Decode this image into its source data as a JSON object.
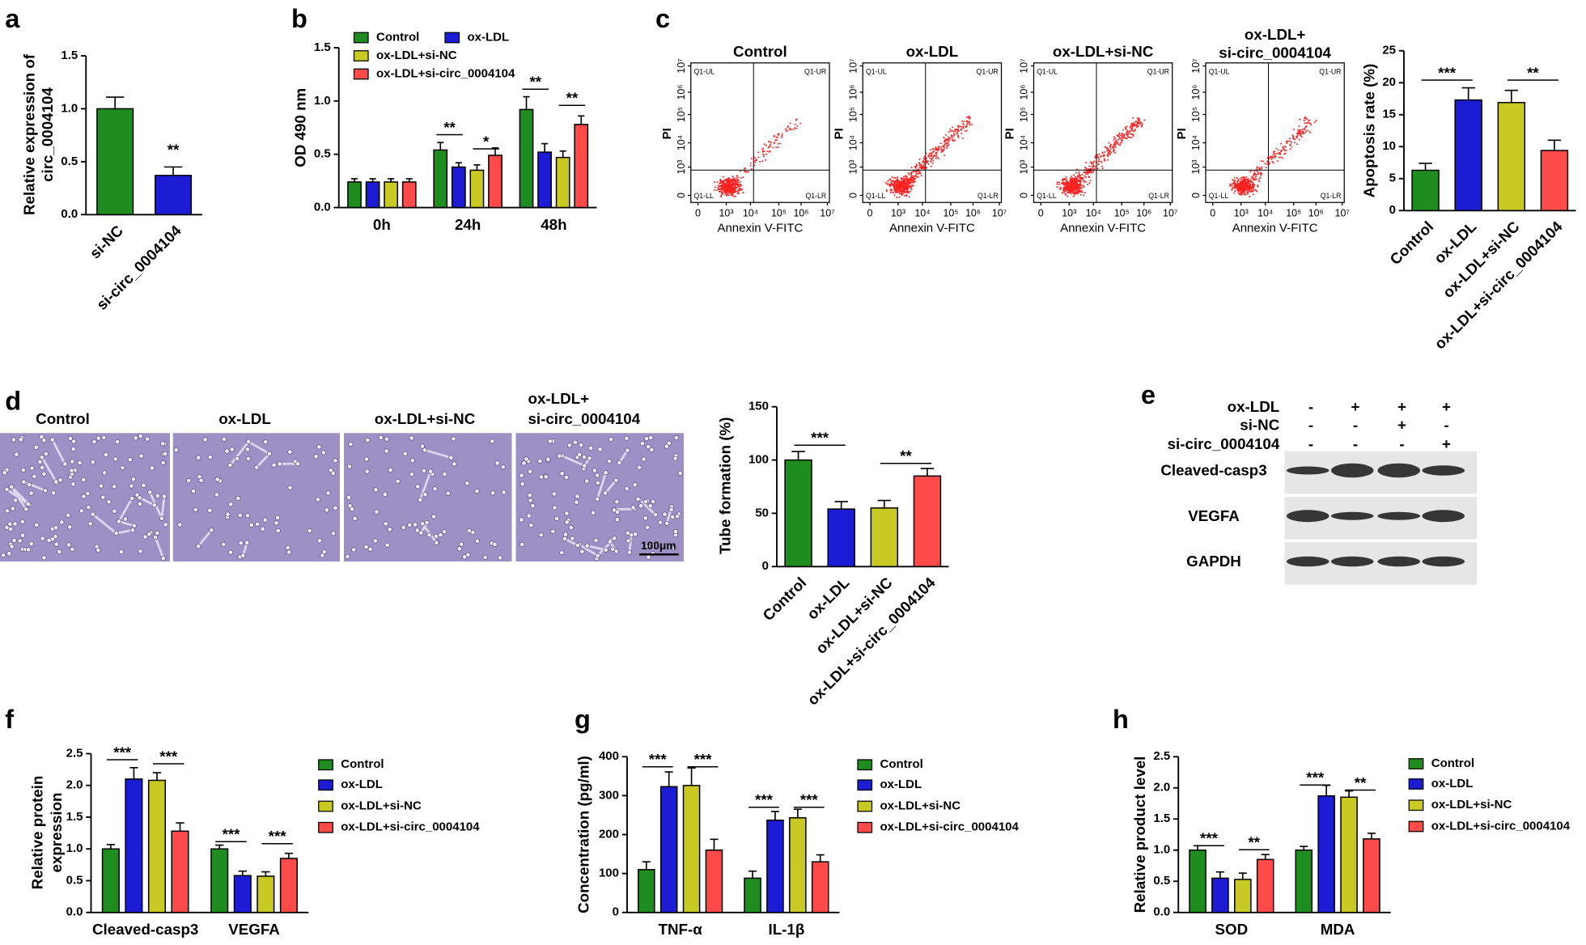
{
  "panel_letters": [
    "a",
    "b",
    "c",
    "d",
    "e",
    "f",
    "g",
    "h"
  ],
  "chart_data": [
    {
      "type": "bar",
      "ylabel": [
        "Relative expression of",
        "circ_0004104"
      ],
      "categories": [
        "si-NC",
        "si-circ_0004104"
      ],
      "values": [
        1.0,
        0.37
      ],
      "errors": [
        0.11,
        0.08
      ],
      "colors": [
        "#1e8c1e",
        "#1c1cd4"
      ],
      "ylim": [
        0,
        1.5
      ],
      "yticks": [
        {
          "value": 0,
          "label": "0.0"
        },
        0.5,
        {
          "value": 1,
          "label": "1.0"
        },
        1.5
      ],
      "annotations": [
        "**"
      ]
    },
    {
      "type": "grouped_bar",
      "ylabel": [
        "OD 490 nm"
      ],
      "categories": [
        "0h",
        "24h",
        "48h"
      ],
      "series": [
        {
          "name": "Control",
          "color": "#1e8c1e",
          "values": [
            0.24,
            0.54,
            0.92
          ],
          "errors": [
            0.03,
            0.07,
            0.12
          ]
        },
        {
          "name": "ox-LDL",
          "color": "#1c1cd4",
          "values": [
            0.24,
            0.38,
            0.52
          ],
          "errors": [
            0.03,
            0.04,
            0.08
          ]
        },
        {
          "name": "ox-LDL+si-NC",
          "color": "#c9c924",
          "values": [
            0.24,
            0.35,
            0.47
          ],
          "errors": [
            0.03,
            0.05,
            0.06
          ]
        },
        {
          "name": "ox-LDL+si-circ_0004104",
          "color": "#ff4a4a",
          "values": [
            0.24,
            0.49,
            0.78
          ],
          "errors": [
            0.03,
            0.07,
            0.08
          ]
        }
      ],
      "ylim": [
        0,
        1.5
      ],
      "yticks": [
        {
          "value": 0,
          "label": "0.0"
        },
        0.5,
        {
          "value": 1,
          "label": "1.0"
        },
        1.5
      ],
      "annotations": [
        "**",
        "*",
        "**",
        "**"
      ]
    },
    {
      "type": "bar",
      "ylabel": [
        "Apoptosis rate (%)"
      ],
      "categories": [
        "Control",
        "ox-LDL",
        "ox-LDL+si-NC",
        "ox-LDL+si-circ_0004104"
      ],
      "values": [
        6.3,
        17.3,
        16.9,
        9.4
      ],
      "errors": [
        1.1,
        1.9,
        1.9,
        1.6
      ],
      "colors": [
        "#1e8c1e",
        "#1c1cd4",
        "#c9c924",
        "#ff4a4a"
      ],
      "ylim": [
        0,
        25
      ],
      "yticks": [
        0,
        5,
        10,
        15,
        20,
        25
      ],
      "annotations": [
        "***",
        "**"
      ]
    },
    {
      "type": "bar",
      "ylabel": [
        "Tube formation (%)"
      ],
      "categories": [
        "Control",
        "ox-LDL",
        "ox-LDL+si-NC",
        "ox-LDL+si-circ_0004104"
      ],
      "values": [
        100,
        54,
        55,
        85
      ],
      "errors": [
        8,
        7,
        7,
        7
      ],
      "colors": [
        "#1e8c1e",
        "#1c1cd4",
        "#c9c924",
        "#ff4a4a"
      ],
      "ylim": [
        0,
        150
      ],
      "yticks": [
        0,
        50,
        100,
        150
      ],
      "annotations": [
        "***",
        "**"
      ]
    },
    {
      "type": "grouped_bar",
      "ylabel": [
        "Relative protein",
        "expression"
      ],
      "categories": [
        "Cleaved-casp3",
        "VEGFA"
      ],
      "series": [
        {
          "name": "Control",
          "color": "#1e8c1e",
          "values": [
            1.0,
            1.0
          ],
          "errors": [
            0.07,
            0.06
          ]
        },
        {
          "name": "ox-LDL",
          "color": "#1c1cd4",
          "values": [
            2.1,
            0.58
          ],
          "errors": [
            0.18,
            0.07
          ]
        },
        {
          "name": "ox-LDL+si-NC",
          "color": "#c9c924",
          "values": [
            2.08,
            0.57
          ],
          "errors": [
            0.12,
            0.07
          ]
        },
        {
          "name": "ox-LDL+si-circ_0004104",
          "color": "#ff4a4a",
          "values": [
            1.28,
            0.85
          ],
          "errors": [
            0.13,
            0.08
          ]
        }
      ],
      "ylim": [
        0,
        2.5
      ],
      "yticks": [
        {
          "value": 0,
          "label": "0.0"
        },
        0.5,
        {
          "value": 1,
          "label": "1.0"
        },
        1.5,
        {
          "value": 2,
          "label": "2.0"
        },
        2.5
      ],
      "annotations": [
        "***",
        "***",
        "***",
        "***"
      ]
    },
    {
      "type": "grouped_bar",
      "ylabel": [
        "Concentration (pg/ml)"
      ],
      "categories": [
        "TNF-α",
        "IL-1β"
      ],
      "series": [
        {
          "name": "Control",
          "color": "#1e8c1e",
          "values": [
            110,
            88
          ],
          "errors": [
            20,
            18
          ]
        },
        {
          "name": "ox-LDL",
          "color": "#1c1cd4",
          "values": [
            323,
            237
          ],
          "errors": [
            38,
            22
          ]
        },
        {
          "name": "ox-LDL+si-NC",
          "color": "#c9c924",
          "values": [
            326,
            243
          ],
          "errors": [
            45,
            22
          ]
        },
        {
          "name": "ox-LDL+si-circ_0004104",
          "color": "#ff4a4a",
          "values": [
            160,
            130
          ],
          "errors": [
            28,
            18
          ]
        }
      ],
      "ylim": [
        0,
        400
      ],
      "yticks": [
        0,
        100,
        200,
        300,
        400
      ],
      "annotations": [
        "***",
        "***",
        "***",
        "***"
      ]
    },
    {
      "type": "grouped_bar",
      "ylabel": [
        "Relative product level"
      ],
      "categories": [
        "SOD",
        "MDA"
      ],
      "series": [
        {
          "name": "Control",
          "color": "#1e8c1e",
          "values": [
            1.0,
            1.0
          ],
          "errors": [
            0.07,
            0.06
          ]
        },
        {
          "name": "ox-LDL",
          "color": "#1c1cd4",
          "values": [
            0.55,
            1.87
          ],
          "errors": [
            0.1,
            0.17
          ]
        },
        {
          "name": "ox-LDL+si-NC",
          "color": "#c9c924",
          "values": [
            0.53,
            1.85
          ],
          "errors": [
            0.1,
            0.1
          ]
        },
        {
          "name": "ox-LDL+si-circ_0004104",
          "color": "#ff4a4a",
          "values": [
            0.85,
            1.18
          ],
          "errors": [
            0.08,
            0.09
          ]
        }
      ],
      "ylim": [
        0,
        2.5
      ],
      "yticks": [
        {
          "value": 0,
          "label": "0.0"
        },
        0.5,
        {
          "value": 1,
          "label": "1.0"
        },
        1.5,
        {
          "value": 2,
          "label": "2.0"
        },
        2.5
      ],
      "annotations": [
        "***",
        "**",
        "***",
        "**"
      ]
    }
  ],
  "flow_plots": {
    "titles": [
      [
        "Control"
      ],
      [
        "ox-LDL"
      ],
      [
        "ox-LDL+si-NC"
      ],
      [
        "ox-LDL+",
        "si-circ_0004104"
      ]
    ],
    "xlabel": "Annexin V-FITC",
    "ylabel": "PI",
    "ticks": [
      "0",
      "10³",
      "10⁴",
      "10⁵",
      "10⁶",
      "10⁷"
    ],
    "quadrants": [
      "Q1-UL",
      "Q1-UR",
      "Q1-LL",
      "Q1-LR"
    ]
  },
  "micrographs": {
    "titles": [
      [
        "Control"
      ],
      [
        "ox-LDL"
      ],
      [
        "ox-LDL+si-NC"
      ],
      [
        "ox-LDL+",
        "si-circ_0004104"
      ]
    ],
    "scale_bar": "100μm"
  },
  "western_blot": {
    "conditions": [
      {
        "name": "ox-LDL",
        "signs": [
          "-",
          "+",
          "+",
          "+"
        ]
      },
      {
        "name": "si-NC",
        "signs": [
          "-",
          "-",
          "+",
          "-"
        ]
      },
      {
        "name": "si-circ_0004104",
        "signs": [
          "-",
          "-",
          "-",
          "+"
        ]
      }
    ],
    "bands": [
      "Cleaved-casp3",
      "VEGFA",
      "GAPDH"
    ]
  }
}
